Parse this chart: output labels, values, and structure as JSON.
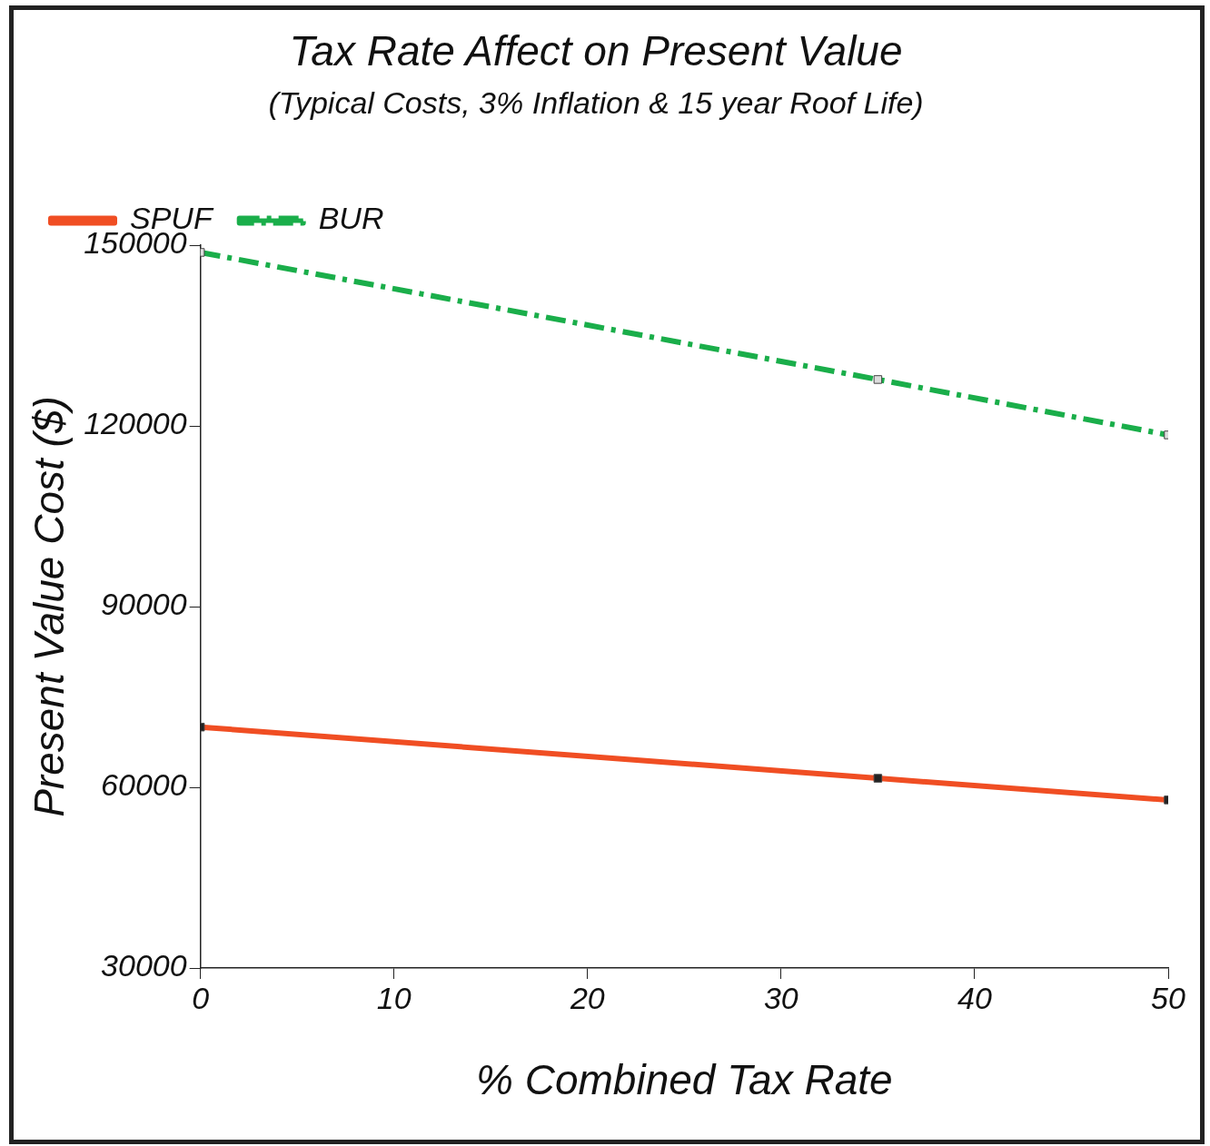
{
  "chart_data": {
    "type": "line",
    "title": "Tax Rate Affect on Present Value",
    "subtitle": "(Typical Costs, 3% Inflation & 15 year Roof Life)",
    "xlabel": "% Combined Tax Rate",
    "ylabel": "Present Value Cost ($)",
    "x": [
      0,
      35,
      50
    ],
    "series": [
      {
        "name": "SPUF",
        "color": "#f04e23",
        "values": [
          70000,
          61500,
          57900
        ],
        "line_style": "solid"
      },
      {
        "name": "BUR",
        "color": "#1aae4a",
        "values": [
          148800,
          127700,
          118500
        ],
        "line_style": "dashed"
      }
    ],
    "xlim": [
      0,
      50
    ],
    "xticks": [
      0,
      10,
      20,
      30,
      40,
      50
    ],
    "ylim": [
      30000,
      150000
    ],
    "yticks": [
      30000,
      60000,
      90000,
      120000,
      150000
    ],
    "grid": false,
    "legend": "top left",
    "marker": "square"
  }
}
